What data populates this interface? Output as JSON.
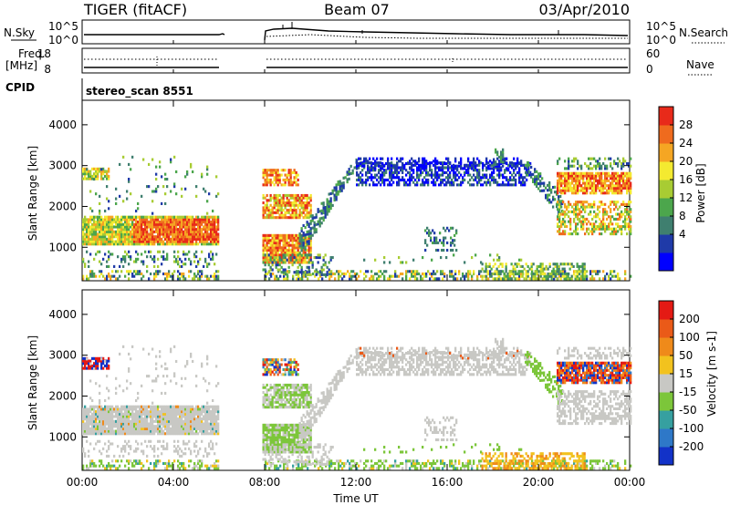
{
  "header": {
    "title": "TIGER (fitACF)",
    "beam": "Beam 07",
    "date": "03/Apr/2010"
  },
  "panels": {
    "nsky_label": "N.Sky",
    "nsky_ticks": [
      "10^5",
      "10^0"
    ],
    "nsearch_label": "N.Search",
    "freq_label_1": "Freq.",
    "freq_label_2": "[MHz]",
    "freq_ticks": [
      "18",
      "8"
    ],
    "nave_label": "Nave",
    "nave_ticks": [
      "60",
      "0"
    ],
    "cpid_label": "CPID",
    "cpid_value": "stereo_scan 8551"
  },
  "chart_data": [
    {
      "type": "heatmap",
      "name": "power",
      "ylabel": "Slant Range [km]",
      "xlabel": "Time UT",
      "x_ticks": [
        "00:00",
        "04:00",
        "08:00",
        "12:00",
        "16:00",
        "20:00",
        "00:00"
      ],
      "x_range_hours": [
        0,
        24
      ],
      "y_ticks": [
        1000,
        2000,
        3000,
        4000
      ],
      "ylim": [
        180,
        4600
      ],
      "colorbar_label": "Power [dB]",
      "colorbar_ticks": [
        28,
        24,
        20,
        16,
        12,
        8,
        4
      ],
      "colorbar_colors": [
        "#0000ff",
        "#1f3aa8",
        "#3f7f6f",
        "#4ca64c",
        "#a8cc33",
        "#f4ea30",
        "#f5a623",
        "#ef6b1e",
        "#e82a1a"
      ],
      "data_gaps_hours": [
        [
          6.0,
          7.9
        ]
      ]
    },
    {
      "type": "heatmap",
      "name": "velocity",
      "ylabel": "Slant Range [km]",
      "xlabel": "Time UT",
      "x_ticks": [
        "00:00",
        "04:00",
        "08:00",
        "12:00",
        "16:00",
        "20:00",
        "00:00"
      ],
      "x_range_hours": [
        0,
        24
      ],
      "y_ticks": [
        1000,
        2000,
        3000,
        4000
      ],
      "ylim": [
        180,
        4600
      ],
      "colorbar_label": "Velocity [m s-1]",
      "colorbar_ticks": [
        200,
        100,
        50,
        15,
        -15,
        -50,
        -100,
        -200
      ],
      "colorbar_colors": [
        "#1232c8",
        "#2e78c8",
        "#36a0a0",
        "#7cc63a",
        "#c8c8c4",
        "#f2c21e",
        "#ef8a1a",
        "#ea5a18",
        "#e41a14"
      ],
      "data_gaps_hours": [
        [
          6.0,
          7.9
        ]
      ]
    }
  ],
  "time_axis_label": "Time UT"
}
